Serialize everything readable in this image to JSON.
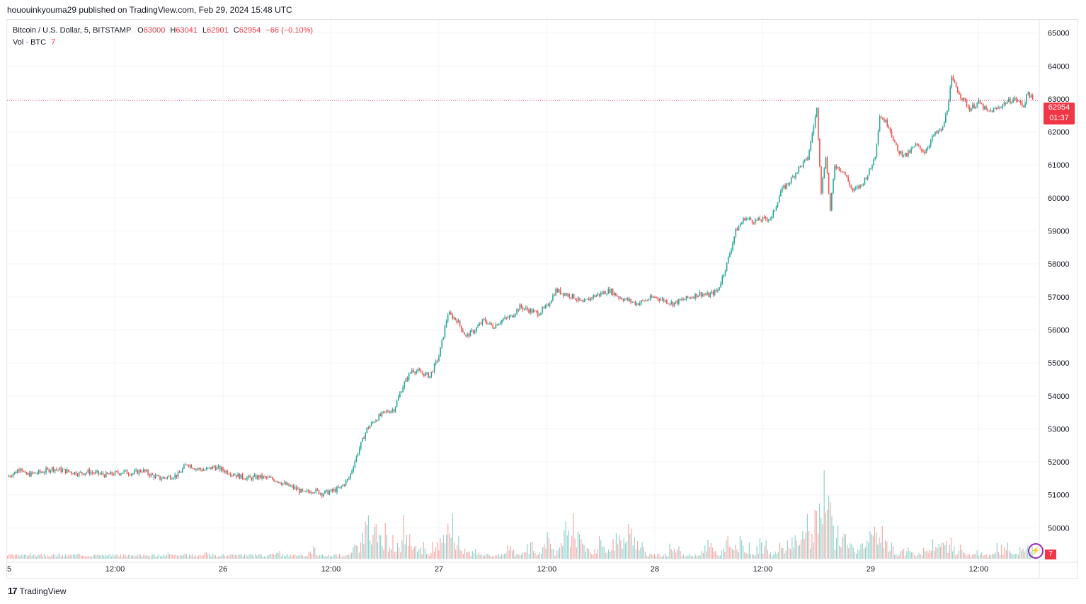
{
  "header": {
    "published": "hououinkyouma29 published on TradingView.com, Feb 29, 2024 15:48 UTC"
  },
  "legend": {
    "symbol": "Bitcoin / U.S. Dollar, 5, BITSTAMP",
    "o_label": "O",
    "o_value": "63000",
    "h_label": "H",
    "h_value": "63041",
    "l_label": "L",
    "l_value": "62901",
    "c_label": "C",
    "c_value": "62954",
    "change": "−66 (−0.10%)",
    "vol_label": "Vol · BTC",
    "vol_value": "7"
  },
  "price_tag": {
    "price": "62954",
    "countdown": "01:37"
  },
  "volume_tag": "7",
  "footer": {
    "brand": "TradingView",
    "logo_glyph": "17"
  },
  "colors": {
    "up": "#26a69a",
    "down": "#ef5350",
    "last_line": "#f23645",
    "grid": "#f0f3fa",
    "axis_text": "#131722"
  },
  "chart_data": {
    "type": "line",
    "title": "Bitcoin / U.S. Dollar, 5, BITSTAMP",
    "ylim": [
      49000,
      65400
    ],
    "y_ticks": [
      50000,
      51000,
      52000,
      53000,
      54000,
      55000,
      56000,
      57000,
      58000,
      59000,
      60000,
      61000,
      62000,
      63000,
      64000,
      65000
    ],
    "x_ticks": [
      {
        "label": "5",
        "t": 0
      },
      {
        "label": "12:00",
        "t": 12
      },
      {
        "label": "26",
        "t": 24
      },
      {
        "label": "12:00",
        "t": 36
      },
      {
        "label": "27",
        "t": 48
      },
      {
        "label": "12:00",
        "t": 60
      },
      {
        "label": "28",
        "t": 72
      },
      {
        "label": "12:00",
        "t": 84
      },
      {
        "label": "29",
        "t": 96
      },
      {
        "label": "12:00",
        "t": 108
      }
    ],
    "x_range_hours": [
      0,
      114.5
    ],
    "last_price": 62954,
    "series": [
      {
        "values": [
          [
            0,
            51550
          ],
          [
            1,
            51700
          ],
          [
            1.5,
            51850
          ],
          [
            2,
            51600
          ],
          [
            3,
            51650
          ],
          [
            4,
            51700
          ],
          [
            5,
            51800
          ],
          [
            6,
            51750
          ],
          [
            7,
            51700
          ],
          [
            8,
            51650
          ],
          [
            9,
            51700
          ],
          [
            10,
            51650
          ],
          [
            11,
            51600
          ],
          [
            12,
            51650
          ],
          [
            13,
            51700
          ],
          [
            14,
            51650
          ],
          [
            15,
            51750
          ],
          [
            16,
            51600
          ],
          [
            17,
            51500
          ],
          [
            18,
            51550
          ],
          [
            19,
            51600
          ],
          [
            20,
            51950
          ],
          [
            21,
            51800
          ],
          [
            22,
            51750
          ],
          [
            23,
            51850
          ],
          [
            24,
            51750
          ],
          [
            25,
            51650
          ],
          [
            26,
            51550
          ],
          [
            27,
            51500
          ],
          [
            28,
            51550
          ],
          [
            29,
            51500
          ],
          [
            30,
            51450
          ],
          [
            31,
            51300
          ],
          [
            32,
            51200
          ],
          [
            33,
            51050
          ],
          [
            34,
            51150
          ],
          [
            35,
            51050
          ],
          [
            36,
            51100
          ],
          [
            37,
            51200
          ],
          [
            38,
            51500
          ],
          [
            39,
            52300
          ],
          [
            40,
            53000
          ],
          [
            41,
            53300
          ],
          [
            42,
            53500
          ],
          [
            43,
            53600
          ],
          [
            44,
            54300
          ],
          [
            45,
            54800
          ],
          [
            46,
            54700
          ],
          [
            47,
            54600
          ],
          [
            48,
            55200
          ],
          [
            49,
            56500
          ],
          [
            50,
            56300
          ],
          [
            51,
            55800
          ],
          [
            52,
            56000
          ],
          [
            53,
            56300
          ],
          [
            54,
            56100
          ],
          [
            55,
            56300
          ],
          [
            56,
            56400
          ],
          [
            57,
            56700
          ],
          [
            58,
            56600
          ],
          [
            59,
            56500
          ],
          [
            60,
            56700
          ],
          [
            61,
            57200
          ],
          [
            62,
            57100
          ],
          [
            63,
            57000
          ],
          [
            64,
            56800
          ],
          [
            65,
            57000
          ],
          [
            66,
            57100
          ],
          [
            67,
            57200
          ],
          [
            68,
            57000
          ],
          [
            69,
            56900
          ],
          [
            70,
            56800
          ],
          [
            71,
            56900
          ],
          [
            72,
            57000
          ],
          [
            73,
            56900
          ],
          [
            74,
            56800
          ],
          [
            75,
            56900
          ],
          [
            76,
            57000
          ],
          [
            77,
            57100
          ],
          [
            78,
            57050
          ],
          [
            79,
            57200
          ],
          [
            80,
            58000
          ],
          [
            81,
            59000
          ],
          [
            82,
            59400
          ],
          [
            83,
            59300
          ],
          [
            84,
            59350
          ],
          [
            85,
            59400
          ],
          [
            86,
            60200
          ],
          [
            87,
            60500
          ],
          [
            88,
            60900
          ],
          [
            89,
            61200
          ],
          [
            90,
            62700
          ],
          [
            90.5,
            60200
          ],
          [
            91,
            61300
          ],
          [
            91.5,
            59600
          ],
          [
            92,
            61000
          ],
          [
            93,
            60800
          ],
          [
            94,
            60200
          ],
          [
            95,
            60400
          ],
          [
            96,
            60900
          ],
          [
            96.5,
            61300
          ],
          [
            97,
            62500
          ],
          [
            98,
            62200
          ],
          [
            99,
            61400
          ],
          [
            100,
            61300
          ],
          [
            101,
            61600
          ],
          [
            102,
            61400
          ],
          [
            103,
            61900
          ],
          [
            104,
            62100
          ],
          [
            104.5,
            62700
          ],
          [
            105,
            63600
          ],
          [
            106,
            63100
          ],
          [
            107,
            62700
          ],
          [
            108,
            62900
          ],
          [
            109,
            62600
          ],
          [
            110,
            62700
          ],
          [
            111,
            62900
          ],
          [
            112,
            63000
          ],
          [
            113,
            62800
          ],
          [
            113.5,
            63200
          ],
          [
            114,
            62954
          ]
        ]
      },
      {
        "name": "Vol · BTC",
        "values": [
          [
            2,
            30
          ],
          [
            6,
            25
          ],
          [
            10,
            20
          ],
          [
            14,
            25
          ],
          [
            18,
            30
          ],
          [
            22,
            35
          ],
          [
            26,
            25
          ],
          [
            30,
            30
          ],
          [
            34,
            40
          ],
          [
            37,
            35
          ],
          [
            39,
            120
          ],
          [
            40,
            180
          ],
          [
            41,
            170
          ],
          [
            42,
            110
          ],
          [
            43,
            80
          ],
          [
            44,
            140
          ],
          [
            45,
            90
          ],
          [
            46,
            60
          ],
          [
            48,
            120
          ],
          [
            49,
            270
          ],
          [
            50,
            110
          ],
          [
            51,
            60
          ],
          [
            52,
            40
          ],
          [
            56,
            60
          ],
          [
            58,
            80
          ],
          [
            60,
            120
          ],
          [
            62,
            140
          ],
          [
            63,
            180
          ],
          [
            64,
            90
          ],
          [
            66,
            100
          ],
          [
            68,
            150
          ],
          [
            69,
            210
          ],
          [
            70,
            120
          ],
          [
            74,
            80
          ],
          [
            78,
            80
          ],
          [
            80,
            90
          ],
          [
            81,
            120
          ],
          [
            82,
            80
          ],
          [
            84,
            90
          ],
          [
            86,
            80
          ],
          [
            87,
            110
          ],
          [
            88,
            150
          ],
          [
            89,
            200
          ],
          [
            90,
            250
          ],
          [
            90.5,
            420
          ],
          [
            91,
            230
          ],
          [
            91.5,
            270
          ],
          [
            92,
            170
          ],
          [
            93,
            120
          ],
          [
            94,
            110
          ],
          [
            95,
            90
          ],
          [
            96,
            130
          ],
          [
            96.5,
            170
          ],
          [
            97,
            150
          ],
          [
            98,
            80
          ],
          [
            100,
            60
          ],
          [
            102,
            50
          ],
          [
            103,
            80
          ],
          [
            104,
            90
          ],
          [
            105,
            100
          ],
          [
            106,
            60
          ],
          [
            108,
            40
          ],
          [
            110,
            50
          ],
          [
            111,
            80
          ],
          [
            113,
            60
          ],
          [
            113.5,
            90
          ]
        ]
      }
    ]
  }
}
